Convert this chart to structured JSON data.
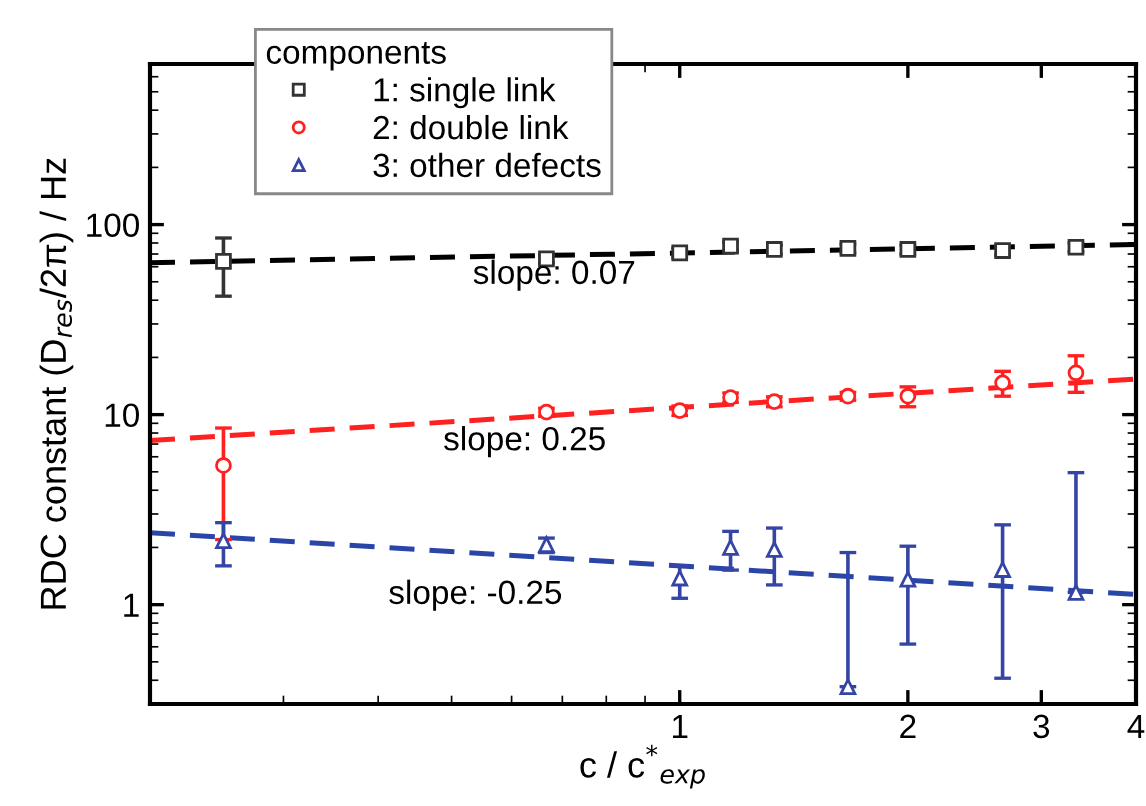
{
  "chart_data": {
    "type": "scatter",
    "xlabel": "c / c$^{*}$$_{exp}$",
    "ylabel": "RDC constant (D$_{res}$/2π) / Hz",
    "legend_title": "components",
    "legend": "top left",
    "log": "xy",
    "grid": false,
    "xlim": [
      0.2,
      4
    ],
    "xticks": [
      1,
      2,
      3,
      4
    ],
    "ylim": [
      0.3,
      700
    ],
    "yticks": [
      1,
      10,
      100
    ],
    "series": [
      {
        "name": "1: single link",
        "marker": "square",
        "color": "#333333",
        "x": [
          0.25,
          0.667,
          1,
          1.167,
          1.333,
          1.667,
          2,
          2.667,
          3.333
        ],
        "values": [
          64,
          66,
          71,
          77,
          74,
          75,
          74,
          73,
          76
        ],
        "errors": [
          [
            42,
            85
          ],
          3,
          4,
          4,
          4,
          4,
          4,
          4,
          4
        ]
      },
      {
        "name": "2: double link",
        "marker": "circle",
        "color": "#ff2020",
        "x": [
          0.25,
          0.667,
          1,
          1.167,
          1.333,
          1.667,
          2,
          2.667,
          3.333
        ],
        "values": [
          5.4,
          10.3,
          10.5,
          12.3,
          11.7,
          12.5,
          12.5,
          14.7,
          16.6
        ],
        "errors": [
          [
            2.2,
            8.5
          ],
          0.5,
          0.6,
          0.7,
          0.7,
          0.6,
          [
            11,
            14
          ],
          [
            12.5,
            16.9
          ],
          [
            13.1,
            20.4
          ]
        ]
      },
      {
        "name": "3: other defects",
        "marker": "triangle",
        "color": "#3545a5",
        "x": [
          0.25,
          0.667,
          1,
          1.167,
          1.333,
          1.667,
          2,
          2.667,
          3.333
        ],
        "values": [
          2.17,
          2.07,
          1.38,
          2.0,
          1.95,
          0.37,
          1.36,
          1.53,
          1.16
        ],
        "errors": [
          [
            1.6,
            2.7
          ],
          [
            1.88,
            2.24
          ],
          [
            1.08,
            1.6
          ],
          [
            1.52,
            2.43
          ],
          [
            1.27,
            2.53
          ],
          [
            0.37,
            1.88
          ],
          [
            0.62,
            2.03
          ],
          [
            0.41,
            2.63
          ],
          [
            1.16,
            4.95
          ]
        ]
      },
      {
        "type": "line",
        "line_style": "dashed",
        "color": "#000000",
        "x": [
          0.2,
          4
        ],
        "values": [
          63,
          78.5
        ]
      },
      {
        "type": "line",
        "line_style": "dashed",
        "color": "#ff2020",
        "x": [
          0.2,
          4
        ],
        "values": [
          7.3,
          15.4
        ]
      },
      {
        "type": "line",
        "line_style": "dashed",
        "color": "#2a45a8",
        "x": [
          0.2,
          4
        ],
        "values": [
          2.39,
          1.13
        ]
      }
    ],
    "annotations": [
      "slope: 0.07",
      "slope: 0.25",
      "slope: -0.25"
    ]
  }
}
